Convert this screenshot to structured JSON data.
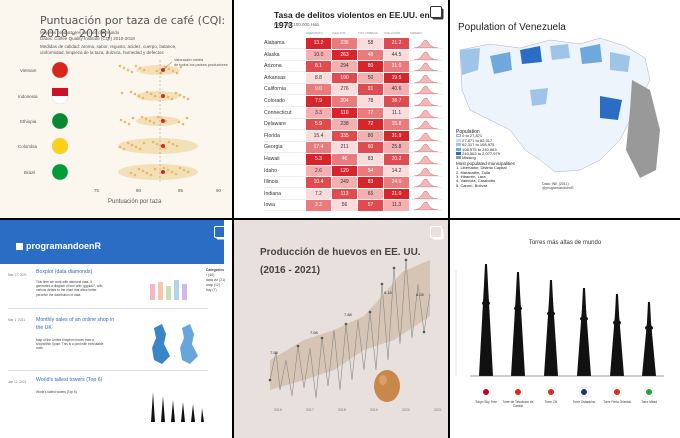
{
  "tiles": {
    "coffee": {
      "title": "Puntuación por taza de café (CQI: 2010 - 2018)",
      "subtitle_lines": [
        "Mejores productores de café del mundo",
        "Datos: Coffee Quality Institute (CQI) 2010-2018"
      ],
      "note_lines": [
        "Medidas de calidad: aroma, sabor, regusto, acidez, cuerpo, balance,",
        "uniformidad, limpieza de la taza, dulzura, humedad y defectos"
      ],
      "annotation_lines": [
        "Valoración media",
        "de todos los países productores"
      ],
      "countries": [
        "Vietnam",
        "Indonesia",
        "Ethiopia",
        "Colombia",
        "Brazil"
      ],
      "xticks": [
        "75",
        "80",
        "85",
        "90"
      ],
      "xlabel": "Puntuación por taza"
    },
    "crime": {
      "title": "Tasa de delitos violentos en EE.UU. en 1973",
      "subtitle": "Por cada 100.000 Hab.",
      "columns": [
        "ASESINATO",
        "ASALTOS",
        "TOT. URBANA",
        "VIOLACIÓN",
        "CRIMEN"
      ],
      "rows": [
        {
          "state": "Alabama",
          "values": [
            "13.2",
            "236",
            "58",
            "21.2"
          ]
        },
        {
          "state": "Alaska",
          "values": [
            "10.0",
            "263",
            "48",
            "44.5"
          ]
        },
        {
          "state": "Arizona",
          "values": [
            "8.1",
            "294",
            "80",
            "31.0"
          ]
        },
        {
          "state": "Arkansas",
          "values": [
            "8.8",
            "190",
            "50",
            "19.5"
          ]
        },
        {
          "state": "California",
          "values": [
            "9.0",
            "276",
            "91",
            "40.6"
          ]
        },
        {
          "state": "Colorado",
          "values": [
            "7.9",
            "204",
            "78",
            "38.7"
          ]
        },
        {
          "state": "Connecticut",
          "values": [
            "3.3",
            "110",
            "77",
            "11.1"
          ]
        },
        {
          "state": "Delaware",
          "values": [
            "5.9",
            "238",
            "72",
            "15.8"
          ]
        },
        {
          "state": "Florida",
          "values": [
            "15.4",
            "335",
            "80",
            "31.9"
          ]
        },
        {
          "state": "Georgia",
          "values": [
            "17.4",
            "211",
            "60",
            "25.8"
          ]
        },
        {
          "state": "Hawaii",
          "values": [
            "5.3",
            "46",
            "83",
            "20.2"
          ]
        },
        {
          "state": "Idaho",
          "values": [
            "2.6",
            "120",
            "54",
            "14.2"
          ]
        },
        {
          "state": "Illinois",
          "values": [
            "10.4",
            "249",
            "83",
            "24.0"
          ]
        },
        {
          "state": "Indiana",
          "values": [
            "7.2",
            "113",
            "65",
            "21.0"
          ]
        },
        {
          "state": "Iowa",
          "values": [
            "2.2",
            "56",
            "57",
            "11.3"
          ]
        }
      ]
    },
    "venezuela": {
      "title": "Population of Venezuela",
      "legend_title": "Population",
      "legend_items": [
        "0 to 27,871",
        "27,871 to 62,317",
        "62,317 to 108,975",
        "108,975 to 240,563",
        "240,563 to 2,077,979",
        "Missing"
      ],
      "cities_title": "Most populated municipalities",
      "cities": [
        "1. Libertador, Distrito Capital",
        "2. Maracaibo, Zulia",
        "3. Iribarren, Lara",
        "4. Valencia, Carabobo",
        "5. Caroní, Bolívar"
      ],
      "source_lines": [
        "Data: INE (2011)",
        "@programandoenR"
      ]
    },
    "blog": {
      "site_name": "programandoenR",
      "posts": [
        {
          "date": "Mar 17, 2021",
          "title": "Boxplot (data diamonds)",
          "text": "This time we work with diamond data. It generates a diagram of box with \"ggplot2\", with various details to the chart that allow better perceive the distribution of data."
        },
        {
          "date": "Mar 1, 2021",
          "title": "Monthly sales of an online shop in the UK",
          "text": "Map of the United Kingdom boxes from a shopwithin Spain. This is a post with executable code."
        },
        {
          "date": "Jan 12, 2021",
          "title": "World's tallest towers (Top 6)",
          "text": "World's tallest towers (Top 6)"
        }
      ],
      "categories_title": "Categories",
      "categories": [
        "r (40)",
        "data viz (21)",
        "map (12)",
        "tidy (7)"
      ]
    },
    "eggs": {
      "title_line1": "Producción de huevos en EE. UU.",
      "title_line2": "(2016 - 2021)",
      "point_labels": [
        "7.58",
        "7.68",
        "7.88",
        "8.18",
        "8.28"
      ],
      "xticks": [
        "2016",
        "2017",
        "2018",
        "2019",
        "2020",
        "2021"
      ]
    },
    "towers": {
      "title": "Torres más altas de mundo",
      "names": [
        "Tokyo Sky Tree",
        "Torre de Televisión de Cantón",
        "Torre CN",
        "Torre Ostankino",
        "Torre Perla Oriental",
        "Torre Milad"
      ]
    }
  },
  "colors": {
    "accent_blue": "#2b6cc4",
    "crime_red": "#d7262b",
    "tower_black": "#111111"
  }
}
